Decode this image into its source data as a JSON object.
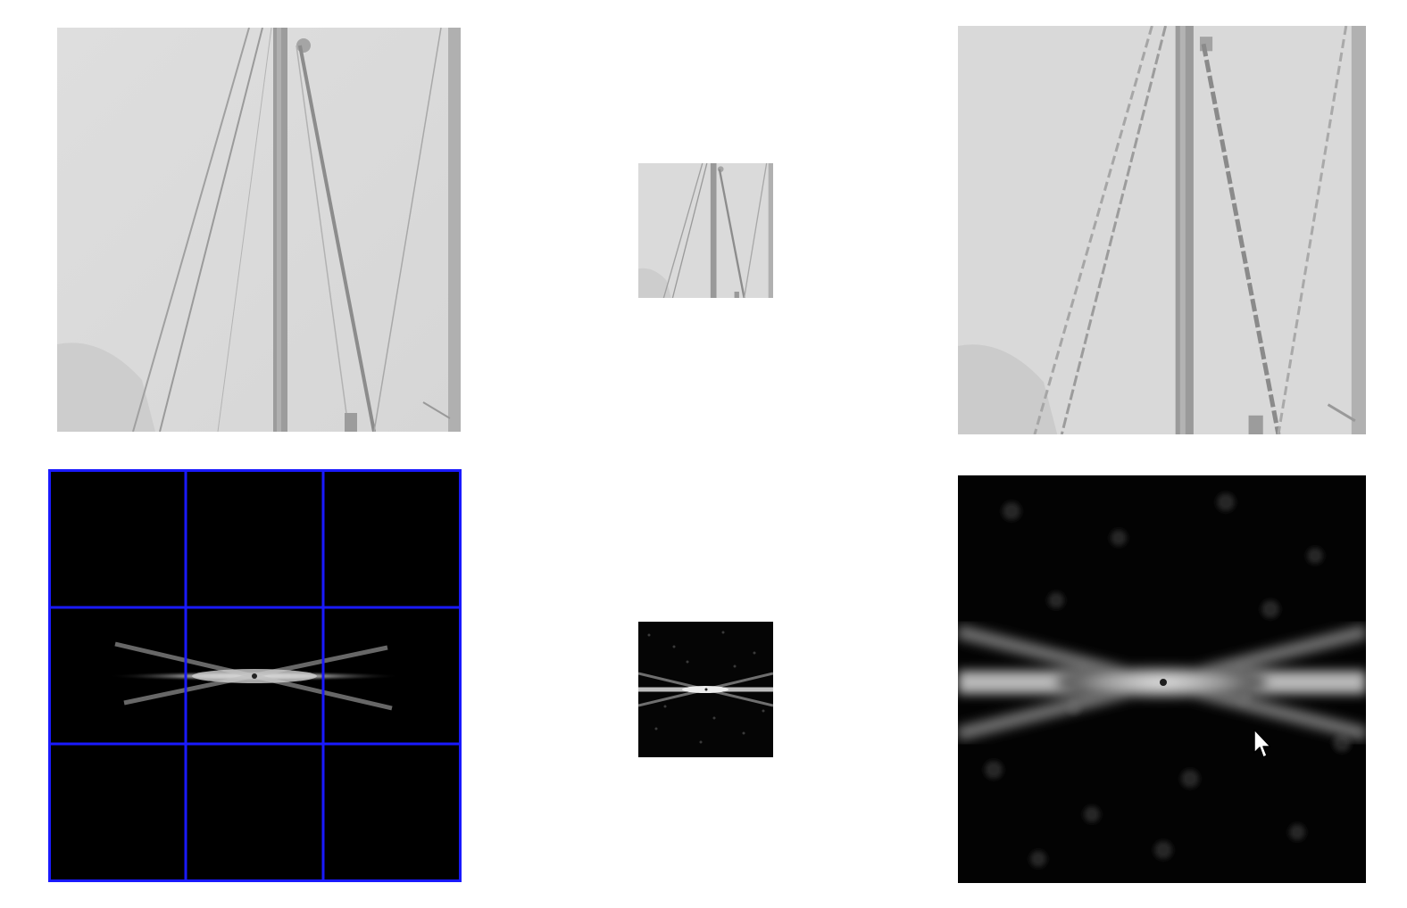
{
  "colors": {
    "background": "#ffffff",
    "sky": "#dadada",
    "sky_dark": "#cfcfcf",
    "mast": "#9a9a9a",
    "rigging": "#8e8e8e",
    "spectrum_bg": "#000000",
    "spectrum_glow": "#e8e8e8",
    "grid_line": "#1a1aff"
  },
  "panels": [
    {
      "id": "original",
      "content": "sailboat-mast-image"
    },
    {
      "id": "downsampled",
      "content": "sailboat-mast-image-small"
    },
    {
      "id": "upsampled",
      "content": "sailboat-mast-image-upsampled"
    },
    {
      "id": "original-spectrum",
      "content": "fourier-magnitude",
      "grid": "3x3"
    },
    {
      "id": "downsampled-spectrum",
      "content": "fourier-magnitude-small"
    },
    {
      "id": "upsampled-spectrum",
      "content": "fourier-magnitude-upsampled"
    }
  ],
  "cursor": {
    "icon": "mouse-pointer-icon"
  }
}
